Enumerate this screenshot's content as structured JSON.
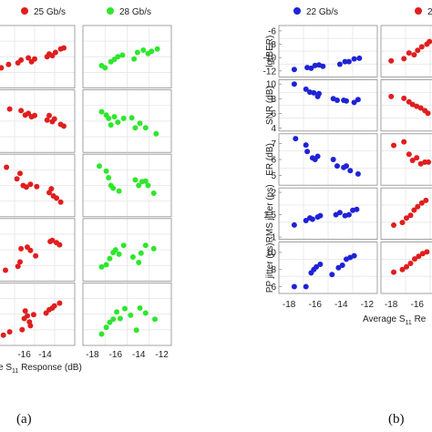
{
  "panel_labels": {
    "a": "(a)",
    "b": "(b)"
  },
  "colors": {
    "red": "#e01e1e",
    "green": "#2ee62e",
    "blue": "#1f23d6",
    "frame": "#8c8c8c",
    "grid": "#e6e6e6"
  },
  "chart_data": [
    {
      "type": "scatter",
      "panel": "a",
      "legend": [
        {
          "name": "25 Gb/s",
          "color": "#e01e1e"
        },
        {
          "name": "28 Gb/s",
          "color": "#2ee62e"
        }
      ],
      "legend_position": "top",
      "xlabel_visible": "e S",
      "xlabel_subscript": "11",
      "xlabel_rest": " Response  (dB)",
      "x_ticks": [
        "-18",
        "-16",
        "-14",
        "-12"
      ],
      "xlim": [
        -18.5,
        -11.5
      ],
      "grid": true,
      "columns": [
        {
          "series": "25 Gb/s",
          "rows": [
            {
              "x": [
                -18.2,
                -17.5,
                -16.6,
                -16.3,
                -15.6,
                -15.3,
                -15.0,
                -13.8,
                -13.6,
                -13.3,
                -13.0,
                -12.5,
                -12.2
              ],
              "y": [
                0.3,
                0.36,
                0.39,
                0.44,
                0.48,
                0.41,
                0.46,
                0.5,
                0.55,
                0.52,
                0.58,
                0.64,
                0.66
              ]
            },
            {
              "x": [
                -17.4,
                -16.3,
                -15.9,
                -15.6,
                -15.3,
                -15.0,
                -13.8,
                -13.6,
                -13.3,
                -13.1,
                -12.5,
                -12.2
              ],
              "y": [
                0.72,
                0.69,
                0.61,
                0.64,
                0.58,
                0.6,
                0.52,
                0.6,
                0.49,
                0.54,
                0.44,
                0.41
              ]
            },
            {
              "x": [
                -17.7,
                -16.7,
                -16.4,
                -16.1,
                -15.8,
                -15.4,
                -14.8,
                -13.6,
                -13.4,
                -13.2,
                -12.9,
                -12.5
              ],
              "y": [
                0.83,
                0.62,
                0.72,
                0.5,
                0.47,
                0.52,
                0.48,
                0.37,
                0.44,
                0.31,
                0.27,
                0.2
              ]
            },
            {
              "x": [
                -17.8,
                -16.6,
                -16.4,
                -16.3,
                -15.7,
                -15.4,
                -14.9,
                -13.5,
                -13.3,
                -12.9,
                -12.6
              ],
              "y": [
                0.13,
                0.2,
                0.28,
                0.52,
                0.55,
                0.49,
                0.39,
                0.65,
                0.67,
                0.63,
                0.59
              ]
            },
            {
              "x": [
                -18.0,
                -17.4,
                -16.2,
                -16.0,
                -15.9,
                -15.7,
                -15.5,
                -15.4,
                -15.1,
                -13.9,
                -13.6,
                -13.3,
                -13.1,
                -12.6
              ],
              "y": [
                0.12,
                0.18,
                0.22,
                0.42,
                0.56,
                0.47,
                0.36,
                0.29,
                0.49,
                0.52,
                0.58,
                0.61,
                0.65,
                0.7
              ]
            }
          ]
        },
        {
          "series": "28 Gb/s",
          "rows": [
            {
              "x": [
                -17.2,
                -16.9,
                -16.4,
                -16.1,
                -15.8,
                -15.4,
                -14.4,
                -14.1,
                -13.6,
                -13.2,
                -12.9,
                -12.4
              ],
              "y": [
                0.34,
                0.3,
                0.41,
                0.45,
                0.5,
                0.53,
                0.46,
                0.58,
                0.62,
                0.56,
                0.6,
                0.64
              ]
            },
            {
              "x": [
                -17.2,
                -16.8,
                -16.6,
                -16.4,
                -16.1,
                -15.8,
                -15.3,
                -14.6,
                -14.3,
                -13.9,
                -13.4,
                -12.5
              ],
              "y": [
                0.67,
                0.61,
                0.55,
                0.43,
                0.58,
                0.48,
                0.55,
                0.56,
                0.38,
                0.46,
                0.38,
                0.27
              ]
            },
            {
              "x": [
                -17.4,
                -16.8,
                -16.6,
                -16.4,
                -16.2,
                -15.7,
                -14.3,
                -14.0,
                -13.7,
                -13.4,
                -13.2,
                -12.7
              ],
              "y": [
                0.85,
                0.76,
                0.64,
                0.5,
                0.45,
                0.4,
                0.6,
                0.5,
                0.57,
                0.58,
                0.5,
                0.36
              ]
            },
            {
              "x": [
                -17.2,
                -16.8,
                -16.5,
                -16.2,
                -16.0,
                -15.7,
                -15.3,
                -14.5,
                -14.0,
                -13.8,
                -13.4,
                -12.7
              ],
              "y": [
                0.19,
                0.23,
                0.34,
                0.45,
                0.5,
                0.42,
                0.58,
                0.37,
                0.27,
                0.44,
                0.58,
                0.52
              ]
            },
            {
              "x": [
                -17.2,
                -16.8,
                -16.5,
                -16.2,
                -15.9,
                -15.6,
                -15.2,
                -14.7,
                -14.2,
                -13.9,
                -13.4,
                -12.6
              ],
              "y": [
                0.14,
                0.26,
                0.35,
                0.41,
                0.54,
                0.42,
                0.6,
                0.48,
                0.21,
                0.61,
                0.52,
                0.41
              ]
            }
          ]
        }
      ]
    },
    {
      "type": "scatter",
      "panel": "b",
      "legend": [
        {
          "name": "22 Gb/s",
          "color": "#1f23d6"
        },
        {
          "name": "2",
          "color": "#e01e1e"
        }
      ],
      "legend_position": "top",
      "xlabel": "Average S",
      "xlabel_subscript": "11",
      "xlabel_rest": " Re",
      "x_ticks": [
        "-18",
        "-16",
        "-14",
        "-12"
      ],
      "xlim": [
        -18.5,
        -11.5
      ],
      "grid": true,
      "rows": [
        {
          "ylabel": "lg(BER)",
          "ylim": [
            -12.9,
            -5.2
          ],
          "y_ticks": [
            -12,
            -10,
            -8,
            -6
          ],
          "blue": {
            "x": [
              -17.6,
              -16.6,
              -16.3,
              -16.0,
              -15.7,
              -15.4,
              -14.1,
              -13.7,
              -13.4,
              -13.0,
              -12.6
            ],
            "y": [
              -11.8,
              -11.5,
              -11.6,
              -11.2,
              -11.1,
              -11.3,
              -11.0,
              -10.6,
              -10.6,
              -10.2,
              -10.1
            ]
          },
          "red_partial": [
            [
              0.2,
              0.28
            ],
            [
              0.45,
              0.33
            ],
            [
              0.55,
              0.46
            ],
            [
              0.65,
              0.42
            ],
            [
              0.72,
              0.52
            ],
            [
              0.8,
              0.6
            ],
            [
              0.9,
              0.66
            ],
            [
              0.95,
              0.72
            ]
          ]
        },
        {
          "ylabel": "SNR  (dB)",
          "ylim": [
            3.6,
            10.6
          ],
          "y_ticks": [
            4,
            6,
            8,
            10
          ],
          "blue": {
            "x": [
              -17.6,
              -16.7,
              -16.4,
              -16.1,
              -15.8,
              -15.7,
              -14.6,
              -14.3,
              -13.8,
              -13.6,
              -13.0,
              -12.7
            ],
            "y": [
              10.0,
              9.3,
              8.9,
              8.8,
              8.3,
              8.7,
              8.0,
              7.8,
              7.8,
              7.7,
              7.5,
              7.9
            ]
          },
          "red_partial": [
            [
              0.2,
              0.7
            ],
            [
              0.45,
              0.66
            ],
            [
              0.55,
              0.58
            ],
            [
              0.62,
              0.52
            ],
            [
              0.7,
              0.48
            ],
            [
              0.78,
              0.44
            ],
            [
              0.86,
              0.38
            ],
            [
              0.92,
              0.32
            ]
          ]
        },
        {
          "ylabel": "ER  (dB)",
          "ylim": [
            4.4,
            7.6
          ],
          "y_ticks": [
            5,
            6,
            7
          ],
          "blue": {
            "x": [
              -17.5,
              -16.7,
              -16.6,
              -16.2,
              -16.0,
              -15.8,
              -14.6,
              -14.3,
              -13.8,
              -13.6,
              -13.3,
              -12.7
            ],
            "y": [
              7.3,
              6.9,
              6.5,
              6.1,
              6.0,
              6.2,
              6.0,
              5.6,
              5.5,
              5.6,
              5.3,
              5.1
            ]
          },
          "red_partial": [
            [
              0.25,
              0.82
            ],
            [
              0.45,
              0.9
            ],
            [
              0.55,
              0.62
            ],
            [
              0.62,
              0.48
            ],
            [
              0.7,
              0.54
            ],
            [
              0.78,
              0.4
            ],
            [
              0.86,
              0.44
            ],
            [
              0.93,
              0.44
            ]
          ]
        },
        {
          "ylabel": "RMS jitter  (ps)",
          "ylim": [
            0.95,
            2.1
          ],
          "y_ticks": [
            1,
            1.5,
            2
          ],
          "blue": {
            "x": [
              -17.6,
              -16.7,
              -16.4,
              -16.2,
              -15.8,
              -15.6,
              -14.4,
              -14.1,
              -13.7,
              -13.4,
              -13.1,
              -12.8
            ],
            "y": [
              1.27,
              1.37,
              1.43,
              1.4,
              1.45,
              1.48,
              1.5,
              1.55,
              1.48,
              1.5,
              1.6,
              1.62
            ]
          },
          "red_partial": [
            [
              0.25,
              0.24
            ],
            [
              0.42,
              0.3
            ],
            [
              0.5,
              0.4
            ],
            [
              0.58,
              0.46
            ],
            [
              0.65,
              0.58
            ],
            [
              0.72,
              0.66
            ],
            [
              0.8,
              0.74
            ],
            [
              0.88,
              0.8
            ]
          ]
        },
        {
          "ylabel": "PP jitter  (ps)",
          "ylim": [
            5.2,
            11.2
          ],
          "y_ticks": [
            6,
            8,
            10
          ],
          "blue": {
            "x": [
              -17.6,
              -16.7,
              -16.3,
              -16.1,
              -15.9,
              -15.6,
              -14.7,
              -14.2,
              -13.9,
              -13.6,
              -13.3,
              -13.0
            ],
            "y": [
              6.0,
              6.0,
              7.6,
              8.0,
              8.3,
              8.6,
              7.4,
              8.2,
              8.5,
              9.2,
              9.4,
              9.6
            ]
          },
          "red_partial": [
            [
              0.25,
              0.4
            ],
            [
              0.42,
              0.46
            ],
            [
              0.5,
              0.52
            ],
            [
              0.58,
              0.6
            ],
            [
              0.66,
              0.7
            ],
            [
              0.74,
              0.76
            ],
            [
              0.82,
              0.82
            ],
            [
              0.9,
              0.86
            ]
          ]
        }
      ]
    }
  ]
}
